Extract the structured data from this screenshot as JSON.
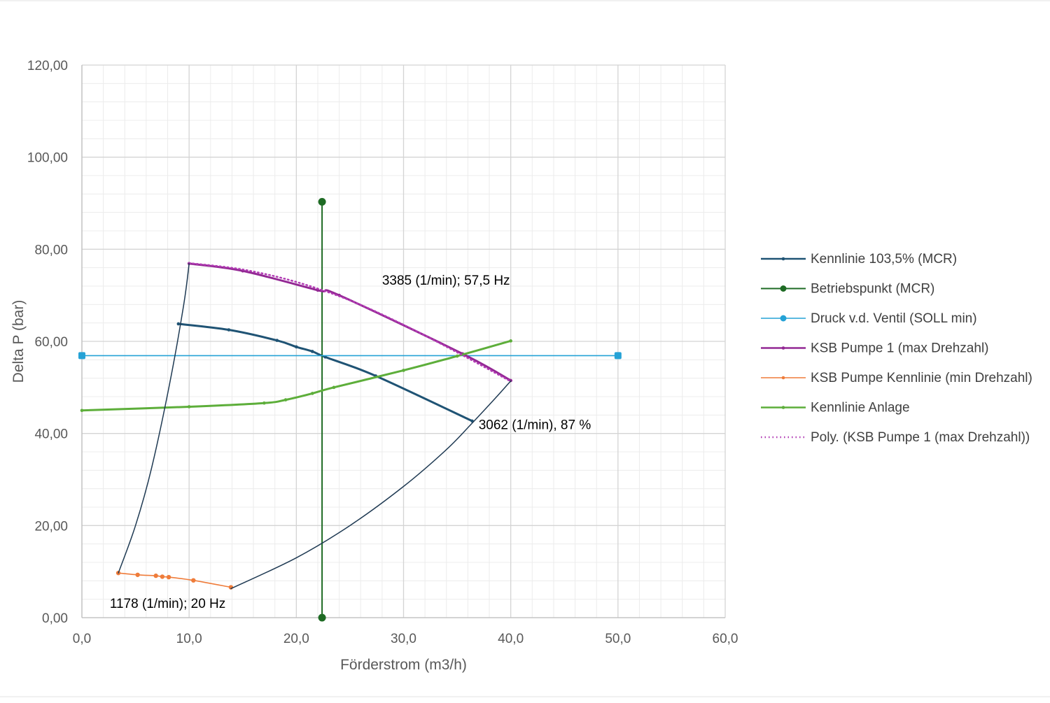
{
  "chart_data": {
    "type": "scatter",
    "xlabel": "Förderstrom (m3/h)",
    "ylabel": "Delta P (bar)",
    "xlim": [
      0,
      60
    ],
    "ylim": [
      0,
      120
    ],
    "x_ticks": [
      "0,0",
      "10,0",
      "20,0",
      "30,0",
      "40,0",
      "50,0",
      "60,0"
    ],
    "y_ticks": [
      "0,00",
      "20,00",
      "40,00",
      "60,00",
      "80,00",
      "100,00",
      "120,00"
    ],
    "grid": true,
    "minor_grid": true,
    "legend_position": "right",
    "annotations": [
      {
        "text": "3385 (1/min); 57,5 Hz",
        "x": 28.0,
        "y": 72.3
      },
      {
        "text": "3062 (1/min), 87 %",
        "x": 37.0,
        "y": 40.9
      },
      {
        "text": "1178 (1/min); 20 Hz",
        "x": 2.6,
        "y": 2.1
      }
    ],
    "series": [
      {
        "name": "Kennlinie 103,5% (MCR)",
        "color": "#1f5374",
        "width": 3,
        "marker": "small-dot",
        "legend_marker": "small-dot",
        "x": [
          9.0,
          13.7,
          18.2,
          20.0,
          21.5,
          22.7,
          27.4,
          36.4
        ],
        "y": [
          63.8,
          62.5,
          60.2,
          58.8,
          57.8,
          56.6,
          52.5,
          42.7
        ]
      },
      {
        "name": "Betriebspunkt (MCR)",
        "color": "#1e6b24",
        "width": 2,
        "marker": "dot",
        "legend_marker": "dot",
        "x": [
          22.4,
          22.4
        ],
        "y": [
          0,
          90.3
        ]
      },
      {
        "name": "Druck v.d. Ventil (SOLL min)",
        "color": "#25a2d6",
        "width": 1.6,
        "marker": "square",
        "legend_marker": "dot",
        "x": [
          0,
          50
        ],
        "y": [
          56.9,
          56.9
        ]
      },
      {
        "name": "KSB Pumpe 1 (max Drehzahl)",
        "color": "#932894",
        "width": 3,
        "marker": "small-dot",
        "legend_marker": "small-dot",
        "x": [
          10.0,
          15.0,
          22.0,
          24.0,
          35.5,
          40.0
        ],
        "y": [
          76.9,
          75.3,
          71.1,
          70.0,
          57.3,
          51.5
        ]
      },
      {
        "name": "KSB Pumpe Kennlinie (min Drehzahl)",
        "color": "#ef7c3a",
        "width": 1.6,
        "marker": "dot",
        "legend_marker": "small-dot",
        "x": [
          3.4,
          5.2,
          6.9,
          7.5,
          8.1,
          10.4,
          13.9
        ],
        "y": [
          9.7,
          9.3,
          9.1,
          8.9,
          8.8,
          8.1,
          6.6
        ]
      },
      {
        "name": "Kennlinie Anlage",
        "color": "#5dae3a",
        "width": 3,
        "marker": "small-dot",
        "legend_marker": "small-dot",
        "x": [
          0,
          10,
          17,
          19,
          21.5,
          23.5,
          30,
          35,
          40
        ],
        "y": [
          45.0,
          45.8,
          46.6,
          47.3,
          48.7,
          50.0,
          53.7,
          56.8,
          60.1
        ]
      },
      {
        "name": "Poly. (KSB Pumpe 1 (max Drehzahl))",
        "color": "#b23bb4",
        "width": 2.5,
        "marker": "none",
        "legend_marker": "dotted-line",
        "dashed": true,
        "x": [
          10,
          15,
          20,
          25,
          30,
          35,
          40
        ],
        "y": [
          77.0,
          75.6,
          72.9,
          68.9,
          63.6,
          57.6,
          51.3
        ]
      },
      {
        "name": "",
        "color": "#1f3a53",
        "width": 1.5,
        "marker": "none",
        "legend": false,
        "x": [
          13.9,
          20,
          25,
          30,
          34,
          36.3,
          38.5,
          40
        ],
        "y": [
          6.3,
          13.0,
          20.0,
          28.5,
          36.5,
          42.0,
          47.5,
          51.4
        ]
      },
      {
        "name": "",
        "color": "#1f3a53",
        "width": 1.5,
        "marker": "none",
        "legend": false,
        "x": [
          3.4,
          5.0,
          6.5,
          8.2,
          9.5,
          10.0
        ],
        "y": [
          9.7,
          20.0,
          32.5,
          51.0,
          68.0,
          76.9
        ]
      }
    ]
  }
}
